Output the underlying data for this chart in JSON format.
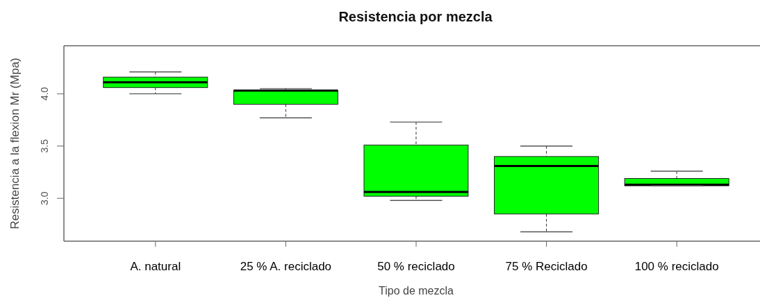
{
  "chart_data": {
    "type": "box",
    "title": "Resistencia por mezcla",
    "xlabel": "Tipo de mezcla",
    "ylabel": "Resistencia a la flexion Mr (Mpa)",
    "categories": [
      "A. natural",
      "25 % A. reciclado",
      "50 % reciclado",
      "75 % Reciclado",
      "100 % reciclado"
    ],
    "color": "#00ff00",
    "boxes": [
      {
        "low": 4.0,
        "q1": 4.06,
        "median": 4.11,
        "q3": 4.16,
        "high": 4.21
      },
      {
        "low": 3.77,
        "q1": 3.9,
        "median": 4.03,
        "q3": 4.03,
        "high": 4.05
      },
      {
        "low": 2.98,
        "q1": 3.02,
        "median": 3.06,
        "q3": 3.51,
        "high": 3.73
      },
      {
        "low": 2.68,
        "q1": 2.85,
        "median": 3.31,
        "q3": 3.4,
        "high": 3.5
      },
      {
        "low": 3.12,
        "q1": 3.12,
        "median": 3.13,
        "q3": 3.19,
        "high": 3.26
      }
    ],
    "ylim": [
      2.59,
      4.46
    ],
    "yticks": [
      {
        "value": 3,
        "label": "3.0"
      },
      {
        "value": 3.5,
        "label": "3.5"
      },
      {
        "value": 4,
        "label": "4.0"
      }
    ]
  }
}
